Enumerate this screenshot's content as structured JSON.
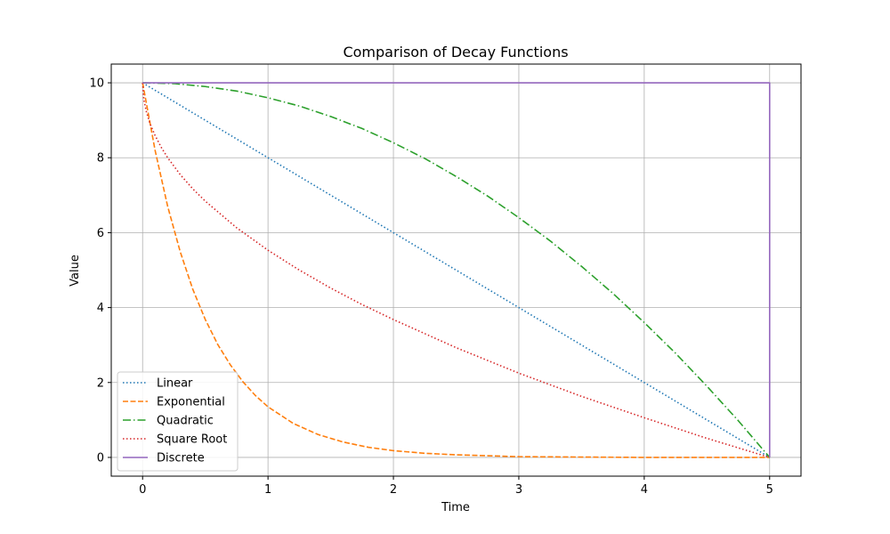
{
  "chart_data": {
    "type": "line",
    "title": "Comparison of Decay Functions",
    "xlabel": "Time",
    "ylabel": "Value",
    "xlim": [
      -0.25,
      5.25
    ],
    "ylim": [
      -0.5,
      10.5
    ],
    "xticks": [
      "0",
      "1",
      "2",
      "3",
      "4",
      "5"
    ],
    "yticks": [
      "0",
      "2",
      "4",
      "6",
      "8",
      "10"
    ],
    "grid": true,
    "legend_position": "lower-left",
    "series": [
      {
        "name": "Linear",
        "color": "#1f77b4",
        "style": "dotted",
        "x": [
          0,
          0.5,
          1,
          1.5,
          2,
          2.5,
          3,
          3.5,
          4,
          4.5,
          5
        ],
        "y": [
          10,
          9,
          8,
          7,
          6,
          5,
          4,
          3,
          2,
          1,
          0
        ]
      },
      {
        "name": "Exponential",
        "color": "#ff7f0e",
        "style": "dashed",
        "x": [
          0,
          0.1,
          0.2,
          0.3,
          0.4,
          0.5,
          0.6,
          0.7,
          0.8,
          0.9,
          1.0,
          1.2,
          1.4,
          1.6,
          1.8,
          2.0,
          2.25,
          2.5,
          3.0,
          3.5,
          4.0,
          4.5,
          5.0
        ],
        "y": [
          10,
          8.19,
          6.7,
          5.49,
          4.49,
          3.68,
          3.01,
          2.47,
          2.02,
          1.65,
          1.35,
          0.91,
          0.61,
          0.41,
          0.27,
          0.18,
          0.11,
          0.07,
          0.02,
          0.01,
          0.0,
          0.0,
          0.0
        ]
      },
      {
        "name": "Quadratic",
        "color": "#2ca02c",
        "style": "dashdot",
        "x": [
          0,
          0.25,
          0.5,
          0.75,
          1,
          1.25,
          1.5,
          1.75,
          2,
          2.25,
          2.5,
          2.75,
          3,
          3.25,
          3.5,
          3.75,
          4,
          4.25,
          4.5,
          4.75,
          5
        ],
        "y": [
          10,
          9.98,
          9.9,
          9.78,
          9.6,
          9.38,
          9.1,
          8.78,
          8.4,
          7.98,
          7.5,
          6.98,
          6.4,
          5.78,
          5.1,
          4.38,
          3.6,
          2.78,
          1.9,
          0.98,
          0
        ]
      },
      {
        "name": "Square Root",
        "color": "#d62728",
        "style": "dotted",
        "x": [
          0,
          0.01,
          0.03,
          0.06,
          0.1,
          0.15,
          0.2,
          0.3,
          0.4,
          0.5,
          0.75,
          1,
          1.25,
          1.5,
          1.75,
          2,
          2.5,
          3,
          3.5,
          4,
          4.5,
          5
        ],
        "y": [
          10,
          9.55,
          9.23,
          8.9,
          8.59,
          8.27,
          8.0,
          7.55,
          7.17,
          6.84,
          6.13,
          5.53,
          5.0,
          4.52,
          4.08,
          3.68,
          2.93,
          2.25,
          1.63,
          1.06,
          0.51,
          0
        ]
      },
      {
        "name": "Discrete",
        "color": "#9467bd",
        "style": "solid",
        "x": [
          0,
          5,
          5
        ],
        "y": [
          10,
          10,
          0
        ]
      }
    ]
  }
}
